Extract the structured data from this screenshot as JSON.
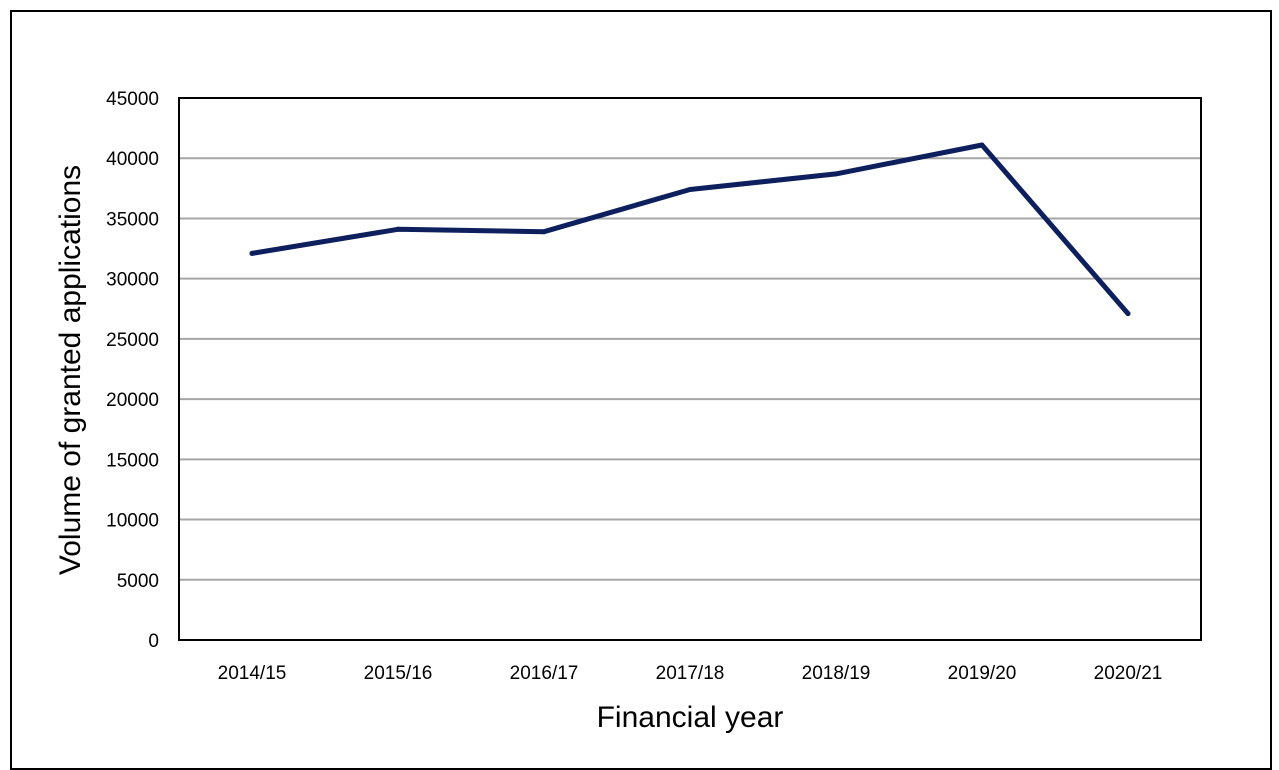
{
  "chart_data": {
    "type": "line",
    "title": "",
    "xlabel": "Financial year",
    "ylabel": "Volume of granted applications",
    "categories": [
      "2014/15",
      "2015/16",
      "2016/17",
      "2017/18",
      "2018/19",
      "2019/20",
      "2020/21"
    ],
    "series": [
      {
        "values": [
          32100,
          34100,
          33900,
          37400,
          38700,
          41100,
          27100
        ],
        "color": "#0d1f5c"
      }
    ],
    "ylim": [
      0,
      45000
    ],
    "yticks": [
      "0",
      "5000",
      "10000",
      "15000",
      "20000",
      "25000",
      "30000",
      "35000",
      "40000",
      "45000"
    ],
    "grid": true,
    "legend": "none"
  }
}
